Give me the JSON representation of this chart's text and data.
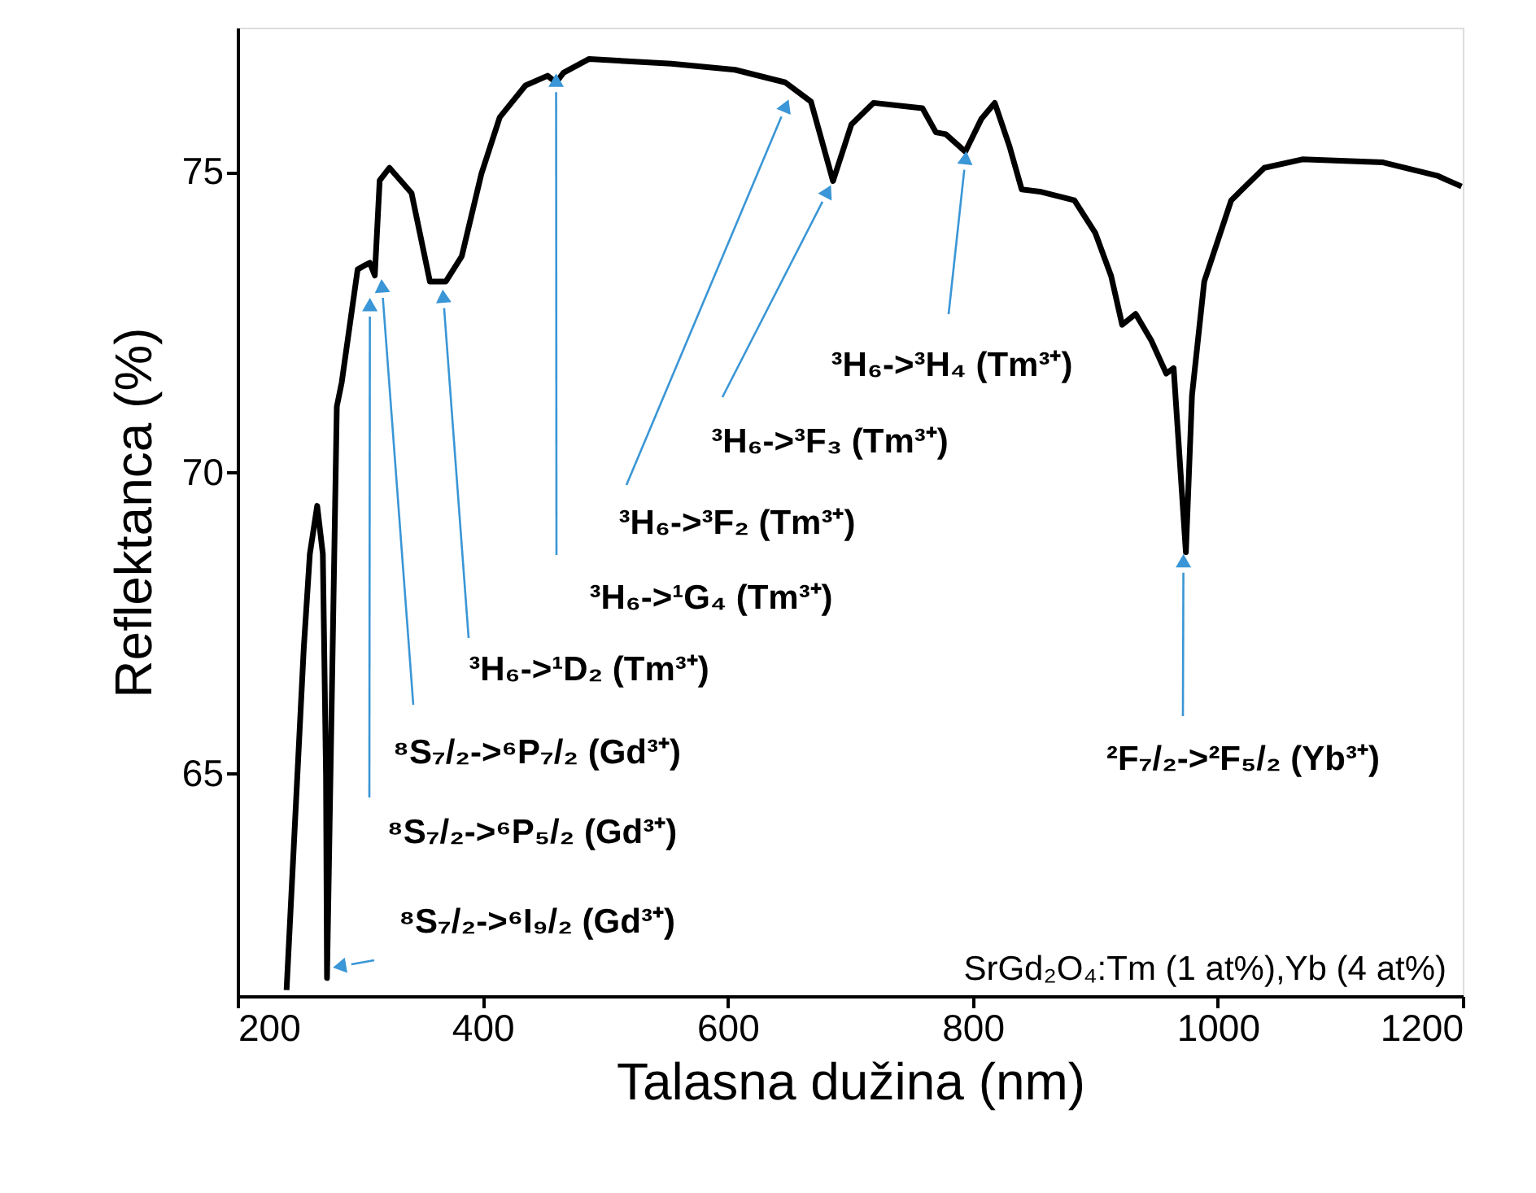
{
  "chart_data": {
    "type": "line",
    "xlabel": "Talasna dužina (nm)",
    "ylabel": "Reflektanca (%)",
    "xlim": [
      200,
      1200
    ],
    "ylim": [
      61.3,
      77.4
    ],
    "xticks": [
      200,
      400,
      600,
      800,
      1000,
      1200
    ],
    "yticks": [
      65,
      70,
      75
    ],
    "grid": false,
    "line_style": "solid",
    "marker": "none",
    "series": [
      {
        "color": "#000000",
        "x": [
          240,
          254,
          259,
          265,
          269.6,
          272.2,
          273,
          281,
          285,
          298,
          303,
          308,
          312,
          316,
          324,
          342,
          357,
          370,
          383,
          399,
          414,
          435,
          453,
          460,
          466,
          487,
          554,
          606,
          647,
          668,
          686,
          701,
          719,
          759,
          770,
          778,
          794,
          807,
          818,
          830,
          840,
          856,
          883,
          900,
          913,
          922,
          933,
          946,
          958,
          964,
          974,
          979,
          989,
          1011,
          1038,
          1069,
          1135,
          1179,
          1199
        ],
        "values": [
          61.4,
          67.07,
          68.65,
          69.45,
          68.65,
          64.97,
          61.6,
          71.1,
          71.5,
          73.38,
          73.44,
          73.49,
          73.28,
          74.86,
          75.07,
          74.65,
          73.18,
          73.18,
          73.6,
          74.97,
          75.91,
          76.44,
          76.6,
          76.49,
          76.65,
          76.88,
          76.8,
          76.7,
          76.49,
          76.17,
          74.85,
          75.79,
          76.15,
          76.06,
          75.66,
          75.63,
          75.34,
          75.88,
          76.15,
          75.43,
          74.71,
          74.67,
          74.53,
          73.99,
          73.27,
          72.46,
          72.64,
          72.19,
          71.65,
          71.74,
          68.68,
          71.29,
          73.18,
          74.53,
          75.07,
          75.21,
          75.16,
          74.94,
          74.76
        ]
      }
    ],
    "annotations": [
      {
        "text": "⁸S₇/₂->⁶I₉/₂ (Gd³⁺)",
        "x": 285,
        "y": 61.8
      },
      {
        "text": "⁸S₇/₂->⁶P₅/₂ (Gd³⁺)",
        "x": 308,
        "y": 72.76
      },
      {
        "text": "⁸S₇/₂->⁶P₇/₂ (Gd³⁺)",
        "x": 318,
        "y": 73.07
      },
      {
        "text": "³H₆->¹D₂ (Tm³⁺)",
        "x": 368,
        "y": 72.9
      },
      {
        "text": "³H₆->¹G₄ (Tm³⁺)",
        "x": 460,
        "y": 76.49
      },
      {
        "text": "³H₆->³F₂ (Tm³⁺)",
        "x": 647,
        "y": 76.07
      },
      {
        "text": "³H₆->³F₃ (Tm³⁺)",
        "x": 681,
        "y": 74.65
      },
      {
        "text": "³H₆->³H₄ (Tm³⁺)",
        "x": 794,
        "y": 75.2
      },
      {
        "text": "²F₇/₂->²F₅/₂ (Yb³⁺)",
        "x": 972,
        "y": 68.5
      },
      "SrGd₂O₄:Tm (1 at%),Yb (4 at%)"
    ]
  }
}
